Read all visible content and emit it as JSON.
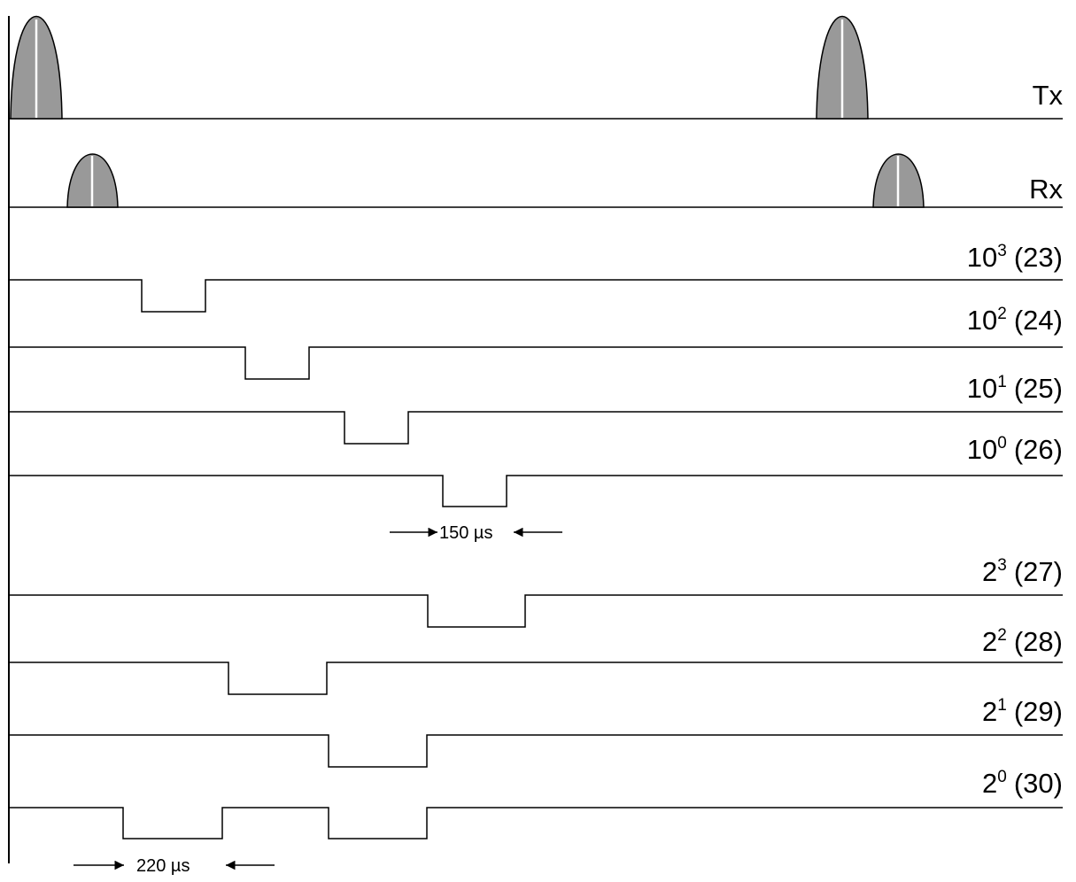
{
  "channels": [
    {
      "label": "Tx"
    },
    {
      "label": "Rx"
    },
    {
      "label": {
        "base": "10",
        "exp": "3",
        "rest": "(23)"
      }
    },
    {
      "label": {
        "base": "10",
        "exp": "2",
        "rest": "(24)"
      }
    },
    {
      "label": {
        "base": "10",
        "exp": "1",
        "rest": "(25)"
      }
    },
    {
      "label": {
        "base": "10",
        "exp": "0",
        "rest": "(26)"
      }
    },
    {
      "label": {
        "base": "2",
        "exp": "3",
        "rest": "(27)"
      }
    },
    {
      "label": {
        "base": "2",
        "exp": "2",
        "rest": "(28)"
      }
    },
    {
      "label": {
        "base": "2",
        "exp": "1",
        "rest": "(29)"
      }
    },
    {
      "label": {
        "base": "2",
        "exp": "0",
        "rest": "(30)"
      }
    }
  ],
  "annotations": [
    "150 µs",
    "220 µs"
  ]
}
